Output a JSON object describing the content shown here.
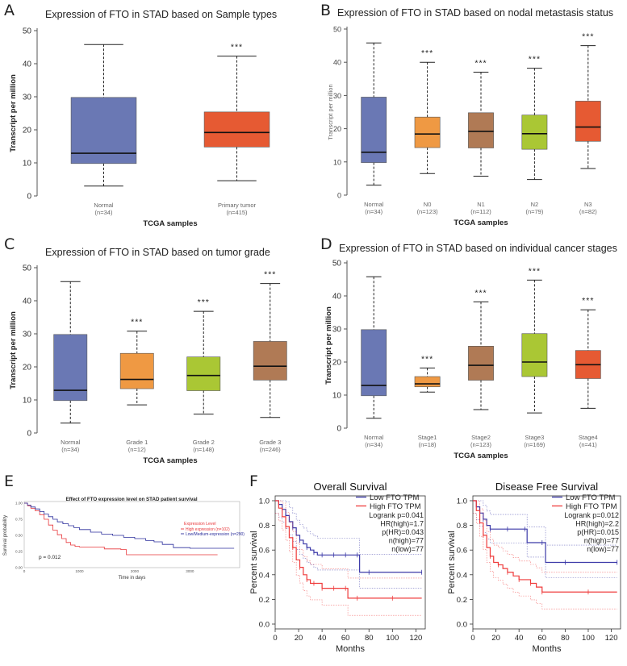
{
  "panel_labels": [
    "A",
    "B",
    "C",
    "D",
    "E",
    "F"
  ],
  "chart_data": [
    {
      "id": "A",
      "type": "boxplot",
      "title": "Expression of FTO in STAD based on Sample types",
      "xlabel": "TCGA samples",
      "ylabel": "Transcript per million",
      "ylim": [
        0,
        50
      ],
      "yticks": [
        0,
        10,
        20,
        30,
        40,
        50
      ],
      "categories": [
        {
          "name": "Normal",
          "n": "(n=34)",
          "min": 3,
          "q1": 9.8,
          "median": 12.9,
          "q3": 29.8,
          "max": 45.8,
          "color": "#6a78b4",
          "sig": ""
        },
        {
          "name": "Primary tumor",
          "n": "(n=415)",
          "min": 4.6,
          "q1": 14.8,
          "median": 19.2,
          "q3": 25.4,
          "max": 42.3,
          "color": "#e65a33",
          "sig": "***"
        }
      ]
    },
    {
      "id": "B",
      "type": "boxplot",
      "title": "Expression of FTO in STAD based on nodal metastasis status",
      "xlabel": "TCGA samples",
      "ylabel": "Transcript per million",
      "ylim": [
        0,
        50
      ],
      "yticks": [
        0,
        10,
        20,
        30,
        40,
        50
      ],
      "categories": [
        {
          "name": "Normal",
          "n": "(n=34)",
          "min": 3,
          "q1": 9.8,
          "median": 12.9,
          "q3": 29.5,
          "max": 45.8,
          "color": "#6a78b4",
          "sig": ""
        },
        {
          "name": "N0",
          "n": "(n=123)",
          "min": 6.5,
          "q1": 14.3,
          "median": 18.4,
          "q3": 23.5,
          "max": 40,
          "color": "#ef9943",
          "sig": "***"
        },
        {
          "name": "N1",
          "n": "(n=112)",
          "min": 5.7,
          "q1": 14.2,
          "median": 19.2,
          "q3": 24.8,
          "max": 37,
          "color": "#b07a55",
          "sig": "***"
        },
        {
          "name": "N2",
          "n": "(n=79)",
          "min": 4.7,
          "q1": 13.8,
          "median": 18.5,
          "q3": 24.1,
          "max": 38.2,
          "color": "#aac734",
          "sig": "***"
        },
        {
          "name": "N3",
          "n": "(n=82)",
          "min": 8,
          "q1": 16.2,
          "median": 20.5,
          "q3": 28.3,
          "max": 45,
          "color": "#e65a33",
          "sig": "***"
        }
      ]
    },
    {
      "id": "C",
      "type": "boxplot",
      "title": "Expression of FTO in STAD based on tumor grade",
      "xlabel": "TCGA samples",
      "ylabel": "Transcript per million",
      "ylim": [
        0,
        50
      ],
      "yticks": [
        0,
        10,
        20,
        30,
        40,
        50
      ],
      "categories": [
        {
          "name": "Normal",
          "n": "(n=34)",
          "min": 3,
          "q1": 9.8,
          "median": 12.9,
          "q3": 29.8,
          "max": 45.8,
          "color": "#6a78b4",
          "sig": ""
        },
        {
          "name": "Grade 1",
          "n": "(n=12)",
          "min": 8.5,
          "q1": 13.4,
          "median": 16.2,
          "q3": 24.1,
          "max": 30.8,
          "color": "#ef9943",
          "sig": "***"
        },
        {
          "name": "Grade 2",
          "n": "(n=148)",
          "min": 5.7,
          "q1": 12.8,
          "median": 17.4,
          "q3": 23,
          "max": 36.8,
          "color": "#aac734",
          "sig": "***"
        },
        {
          "name": "Grade 3",
          "n": "(n=246)",
          "min": 4.7,
          "q1": 16,
          "median": 20.2,
          "q3": 27.7,
          "max": 45.2,
          "color": "#b07a55",
          "sig": "***"
        }
      ]
    },
    {
      "id": "D",
      "type": "boxplot",
      "title": "Expression of FTO in STAD based on individual cancer stages",
      "xlabel": "TCGA samples",
      "ylabel": "Transcript per million",
      "ylim": [
        0,
        50
      ],
      "yticks": [
        0,
        10,
        20,
        30,
        40,
        50
      ],
      "categories": [
        {
          "name": "Normal",
          "n": "(n=34)",
          "min": 3,
          "q1": 9.8,
          "median": 12.9,
          "q3": 29.8,
          "max": 45.8,
          "color": "#6a78b4",
          "sig": ""
        },
        {
          "name": "Stage1",
          "n": "(n=18)",
          "min": 10.9,
          "q1": 12.5,
          "median": 13.4,
          "q3": 15.6,
          "max": 18.2,
          "color": "#ef9943",
          "sig": "***"
        },
        {
          "name": "Stage2",
          "n": "(n=123)",
          "min": 5.6,
          "q1": 14.5,
          "median": 19,
          "q3": 24.8,
          "max": 38.2,
          "color": "#b07a55",
          "sig": "***"
        },
        {
          "name": "Stage3",
          "n": "(n=169)",
          "min": 4.6,
          "q1": 15.6,
          "median": 20,
          "q3": 28.6,
          "max": 44.8,
          "color": "#aac734",
          "sig": "***"
        },
        {
          "name": "Stage4",
          "n": "(n=41)",
          "min": 6,
          "q1": 15,
          "median": 19.2,
          "q3": 23.5,
          "max": 35.8,
          "color": "#e65a33",
          "sig": "***"
        }
      ]
    },
    {
      "id": "E",
      "type": "line",
      "title": "Effect of FTO expression level on STAD patient survival",
      "xlabel": "Time in days",
      "ylabel": "Survival probability",
      "xlim": [
        0,
        3900
      ],
      "ylim": [
        0,
        1
      ],
      "xticks": [
        0,
        1000,
        2000,
        3000
      ],
      "xtick_labels": [
        "0",
        "1000",
        "2000",
        "3000"
      ],
      "yticks": [
        0,
        0.25,
        0.5,
        0.75,
        1
      ],
      "ytick_labels": [
        "0.00",
        "0.25",
        "0.50",
        "0.75",
        "1.00"
      ],
      "legend_title": "Expression Level",
      "pvalue": "p = 0.012",
      "series": [
        {
          "name": "High expression (n=102)",
          "color": "#e8363a",
          "x": [
            0,
            60,
            120,
            200,
            280,
            360,
            440,
            520,
            600,
            680,
            760,
            840,
            920,
            1000,
            1150,
            1300,
            1450,
            1600,
            1750,
            1850,
            2400,
            3500
          ],
          "y": [
            1,
            0.96,
            0.92,
            0.88,
            0.82,
            0.75,
            0.66,
            0.58,
            0.51,
            0.45,
            0.39,
            0.35,
            0.33,
            0.32,
            0.32,
            0.32,
            0.29,
            0.29,
            0.28,
            0.2,
            0.2,
            0.2
          ]
        },
        {
          "name": "Low/Medium-expression (n=290)",
          "color": "#2b2e9c",
          "x": [
            0,
            60,
            120,
            200,
            280,
            360,
            440,
            520,
            600,
            700,
            800,
            900,
            1000,
            1200,
            1400,
            1600,
            1800,
            2000,
            2200,
            2350,
            2500,
            2700,
            3000,
            3300,
            3800
          ],
          "y": [
            1,
            0.97,
            0.94,
            0.91,
            0.87,
            0.83,
            0.79,
            0.75,
            0.71,
            0.68,
            0.65,
            0.62,
            0.59,
            0.55,
            0.52,
            0.5,
            0.47,
            0.45,
            0.42,
            0.4,
            0.36,
            0.31,
            0.3,
            0.3,
            0.3
          ]
        }
      ]
    },
    {
      "id": "F1",
      "type": "line",
      "title": "Overall Survival",
      "xlabel": "Months",
      "ylabel": "Percent survival",
      "xlim": [
        0,
        128
      ],
      "ylim": [
        0,
        1
      ],
      "xticks": [
        0,
        20,
        40,
        60,
        80,
        100,
        120
      ],
      "yticks": [
        0,
        0.2,
        0.4,
        0.6,
        0.8,
        1
      ],
      "ytick_labels": [
        "0.0",
        "0.2",
        "0.4",
        "0.6",
        "0.8",
        "1.0"
      ],
      "stats": [
        "Logrank p=0.041",
        "HR(high)=1.7",
        "p(HR)=0.043",
        "n(high)=77",
        "n(low)=77"
      ],
      "series": [
        {
          "name": "Low FTO TPM",
          "color": "#3b39a8",
          "x": [
            0,
            3,
            6,
            9,
            12,
            15,
            18,
            21,
            24,
            27,
            30,
            33,
            36,
            40,
            45,
            50,
            55,
            60,
            65,
            70,
            72,
            80,
            100,
            125
          ],
          "y": [
            1,
            0.97,
            0.93,
            0.88,
            0.83,
            0.78,
            0.72,
            0.68,
            0.65,
            0.62,
            0.6,
            0.58,
            0.56,
            0.56,
            0.56,
            0.56,
            0.56,
            0.56,
            0.56,
            0.56,
            0.42,
            0.42,
            0.42,
            0.42
          ]
        },
        {
          "name": "High FTO TPM",
          "color": "#ef3b3b",
          "x": [
            0,
            3,
            6,
            9,
            12,
            15,
            18,
            21,
            24,
            27,
            30,
            33,
            36,
            40,
            45,
            50,
            55,
            60,
            62,
            70,
            80,
            100,
            125
          ],
          "y": [
            1,
            0.94,
            0.87,
            0.79,
            0.7,
            0.62,
            0.52,
            0.46,
            0.4,
            0.36,
            0.33,
            0.33,
            0.33,
            0.29,
            0.29,
            0.29,
            0.29,
            0.29,
            0.21,
            0.21,
            0.21,
            0.21,
            0.21
          ]
        }
      ]
    },
    {
      "id": "F2",
      "type": "line",
      "title": "Disease Free Survival",
      "xlabel": "Months",
      "ylabel": "Percent survival",
      "xlim": [
        0,
        128
      ],
      "ylim": [
        0,
        1
      ],
      "xticks": [
        0,
        20,
        40,
        60,
        80,
        100,
        120
      ],
      "yticks": [
        0,
        0.2,
        0.4,
        0.6,
        0.8,
        1
      ],
      "ytick_labels": [
        "0.0",
        "0.2",
        "0.4",
        "0.6",
        "0.8",
        "1.0"
      ],
      "stats": [
        "Logrank p=0.012",
        "HR(high)=2.2",
        "p(HR)=0.015",
        "n(high)=77",
        "n(low)=77"
      ],
      "series": [
        {
          "name": "Low FTO TPM",
          "color": "#3b39a8",
          "x": [
            0,
            3,
            6,
            9,
            12,
            15,
            20,
            30,
            40,
            45,
            47,
            60,
            63,
            80,
            100,
            125
          ],
          "y": [
            1,
            0.95,
            0.9,
            0.85,
            0.8,
            0.77,
            0.77,
            0.77,
            0.77,
            0.77,
            0.66,
            0.66,
            0.5,
            0.5,
            0.5,
            0.5
          ]
        },
        {
          "name": "High FTO TPM",
          "color": "#ef3b3b",
          "x": [
            0,
            3,
            6,
            9,
            12,
            15,
            18,
            22,
            26,
            30,
            35,
            40,
            45,
            50,
            55,
            60,
            80,
            100,
            125
          ],
          "y": [
            1,
            0.92,
            0.82,
            0.72,
            0.62,
            0.55,
            0.5,
            0.48,
            0.45,
            0.42,
            0.39,
            0.36,
            0.36,
            0.33,
            0.3,
            0.26,
            0.26,
            0.26,
            0.26
          ]
        }
      ]
    }
  ]
}
